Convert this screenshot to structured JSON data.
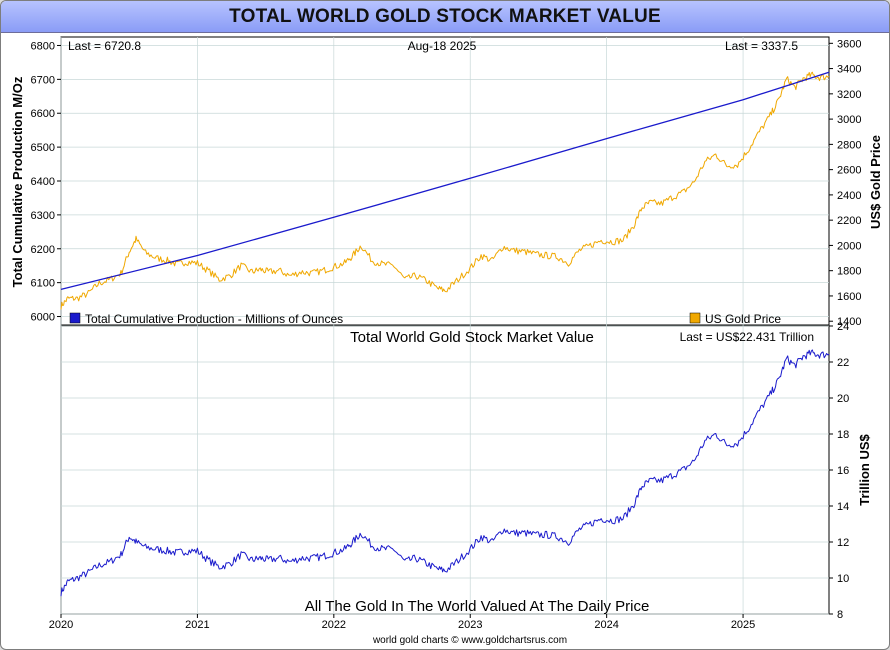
{
  "title": "TOTAL WORLD GOLD STOCK MARKET VALUE",
  "footer": "world gold charts © www.goldchartsrus.com",
  "colors": {
    "production": "#1a1acc",
    "gold": "#f0a800",
    "grid": "#c8d8d8",
    "title_bar": "#9aa8f8"
  },
  "chart_data": [
    {
      "type": "line",
      "panel": "top",
      "last_left": "Last = 6720.8",
      "date": "Aug-18  2025",
      "last_right": "Last = 3337.5",
      "ylabel_left": "Total Cumulative Production M/Oz",
      "ylabel_right": "US$ Gold Price",
      "left_ticks": [
        "6800",
        "6700",
        "6600",
        "6500",
        "6400",
        "6300",
        "6200",
        "6100",
        "6000"
      ],
      "right_ticks": [
        "3600",
        "3400",
        "3200",
        "3000",
        "2800",
        "2600",
        "2400",
        "2200",
        "2000",
        "1800",
        "1600",
        "1400"
      ],
      "ylim_left": [
        5975,
        6825
      ],
      "ylim_right": [
        1370,
        3650
      ],
      "legend": [
        {
          "name": "Total Cumulative Production - Millions of Ounces",
          "color": "#1a1acc",
          "axis": "left"
        },
        {
          "name": "US Gold Price",
          "color": "#f0a800",
          "axis": "right"
        }
      ],
      "series": [
        {
          "name": "Total Cumulative Production - Millions of Ounces",
          "axis": "left",
          "x": [
            2020.0,
            2021.0,
            2022.0,
            2023.0,
            2024.0,
            2025.0,
            2025.63
          ],
          "values": [
            6080,
            6180,
            6293,
            6408,
            6525,
            6640,
            6720.8
          ]
        },
        {
          "name": "US Gold Price",
          "axis": "right",
          "x": [
            2020.0,
            2020.05,
            2020.12,
            2020.2,
            2020.28,
            2020.36,
            2020.44,
            2020.5,
            2020.55,
            2020.62,
            2020.7,
            2020.78,
            2020.85,
            2020.92,
            2021.0,
            2021.08,
            2021.16,
            2021.24,
            2021.32,
            2021.4,
            2021.46,
            2021.52,
            2021.6,
            2021.68,
            2021.76,
            2021.84,
            2021.92,
            2022.0,
            2022.08,
            2022.14,
            2022.2,
            2022.28,
            2022.36,
            2022.44,
            2022.52,
            2022.6,
            2022.68,
            2022.76,
            2022.82,
            2022.9,
            2023.0,
            2023.08,
            2023.16,
            2023.24,
            2023.32,
            2023.4,
            2023.48,
            2023.56,
            2023.64,
            2023.72,
            2023.8,
            2023.88,
            2023.96,
            2024.04,
            2024.12,
            2024.2,
            2024.26,
            2024.32,
            2024.4,
            2024.48,
            2024.56,
            2024.64,
            2024.72,
            2024.8,
            2024.88,
            2024.96,
            2025.04,
            2025.12,
            2025.2,
            2025.26,
            2025.32,
            2025.38,
            2025.44,
            2025.5,
            2025.56,
            2025.63
          ],
          "values": [
            1520,
            1580,
            1580,
            1620,
            1700,
            1730,
            1780,
            1950,
            2050,
            1940,
            1900,
            1880,
            1850,
            1870,
            1860,
            1800,
            1730,
            1760,
            1840,
            1790,
            1810,
            1790,
            1800,
            1760,
            1790,
            1780,
            1800,
            1830,
            1860,
            1920,
            2000,
            1880,
            1850,
            1840,
            1730,
            1760,
            1720,
            1660,
            1640,
            1720,
            1820,
            1920,
            1880,
            1990,
            1960,
            1950,
            1930,
            1920,
            1910,
            1860,
            1960,
            2000,
            2040,
            2030,
            2040,
            2160,
            2300,
            2340,
            2330,
            2380,
            2420,
            2500,
            2660,
            2720,
            2630,
            2640,
            2760,
            2900,
            3030,
            3150,
            3320,
            3250,
            3320,
            3350,
            3330,
            3337.5
          ]
        }
      ]
    },
    {
      "type": "line",
      "panel": "bottom",
      "title": "Total World Gold Stock Market Value",
      "last": "Last = US$22.431 Trillion",
      "subtitle": "All The Gold In The World Valued At The Daily Price",
      "ylabel_right": "Trillion US$",
      "right_ticks": [
        "24",
        "22",
        "20",
        "18",
        "16",
        "14",
        "12",
        "10",
        "8"
      ],
      "ylim": [
        8,
        24
      ],
      "x_ticks": [
        "2020",
        "2021",
        "2022",
        "2023",
        "2024",
        "2025"
      ],
      "series": [
        {
          "name": "Total World Gold Stock Market Value",
          "x": [
            2020.0,
            2020.05,
            2020.12,
            2020.2,
            2020.28,
            2020.36,
            2020.44,
            2020.5,
            2020.55,
            2020.62,
            2020.7,
            2020.78,
            2020.85,
            2020.92,
            2021.0,
            2021.08,
            2021.16,
            2021.24,
            2021.32,
            2021.4,
            2021.46,
            2021.52,
            2021.6,
            2021.68,
            2021.76,
            2021.84,
            2021.92,
            2022.0,
            2022.08,
            2022.14,
            2022.2,
            2022.28,
            2022.36,
            2022.44,
            2022.52,
            2022.6,
            2022.68,
            2022.76,
            2022.82,
            2022.9,
            2023.0,
            2023.08,
            2023.16,
            2023.24,
            2023.32,
            2023.4,
            2023.48,
            2023.56,
            2023.64,
            2023.72,
            2023.8,
            2023.88,
            2023.96,
            2024.04,
            2024.12,
            2024.2,
            2024.26,
            2024.32,
            2024.4,
            2024.48,
            2024.56,
            2024.64,
            2024.72,
            2024.8,
            2024.88,
            2024.96,
            2025.04,
            2025.12,
            2025.2,
            2025.26,
            2025.32,
            2025.38,
            2025.44,
            2025.5,
            2025.56,
            2025.63
          ],
          "values": [
            9.2,
            9.8,
            10.0,
            10.3,
            10.7,
            10.9,
            11.3,
            12.3,
            12.0,
            11.7,
            11.6,
            11.5,
            11.4,
            11.5,
            11.5,
            11.0,
            10.6,
            10.8,
            11.3,
            11.0,
            11.1,
            11.0,
            11.1,
            10.9,
            11.1,
            11.1,
            11.2,
            11.4,
            11.6,
            12.0,
            12.5,
            11.8,
            11.6,
            11.6,
            10.9,
            11.1,
            10.8,
            10.5,
            10.4,
            10.9,
            11.6,
            12.3,
            12.0,
            12.7,
            12.5,
            12.5,
            12.4,
            12.4,
            12.3,
            12.0,
            12.7,
            13.0,
            13.3,
            13.2,
            13.3,
            14.1,
            15.1,
            15.4,
            15.4,
            15.7,
            16.0,
            16.5,
            17.6,
            18.0,
            17.4,
            17.5,
            18.3,
            19.3,
            20.2,
            21.0,
            22.2,
            21.8,
            22.3,
            22.5,
            22.4,
            22.431
          ]
        }
      ]
    }
  ]
}
